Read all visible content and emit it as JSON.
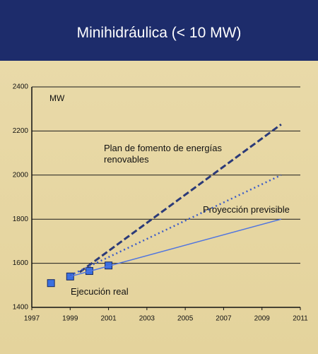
{
  "chart_data": {
    "type": "line",
    "title": "Minihidráulica (< 10 MW)",
    "y_label": "MW",
    "xlim": [
      1997,
      2011
    ],
    "xticks": [
      1997,
      1999,
      2001,
      2003,
      2005,
      2007,
      2009,
      2011
    ],
    "ylim": [
      1400,
      2400
    ],
    "yticks": [
      1400,
      1600,
      1800,
      2000,
      2200,
      2400
    ],
    "grid": true,
    "series": [
      {
        "name": "Ejecución real",
        "style": "markers",
        "color": "#3a6fe0",
        "x": [
          1998,
          1999,
          2000,
          2001
        ],
        "values": [
          1510,
          1540,
          1565,
          1590
        ]
      },
      {
        "name": "Plan de fomento de energías renovables",
        "style": "dashed",
        "color": "#2b3a78",
        "x": [
          1999.5,
          2010
        ],
        "values": [
          1560,
          2230
        ]
      },
      {
        "name": "Proyección previsible",
        "style": "dotted",
        "color": "#3c5cc8",
        "x": [
          1999,
          2010
        ],
        "values": [
          1545,
          2000
        ]
      },
      {
        "name": "",
        "style": "solid",
        "color": "#4f74e0",
        "x": [
          1999,
          2010
        ],
        "values": [
          1540,
          1800
        ]
      }
    ]
  }
}
